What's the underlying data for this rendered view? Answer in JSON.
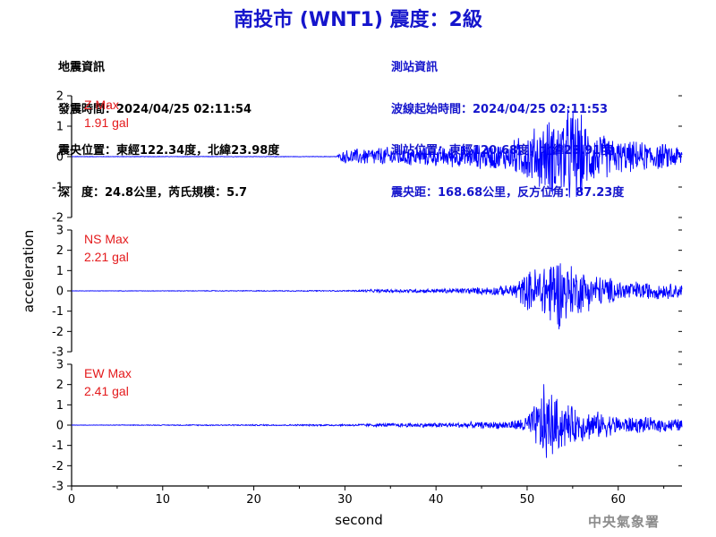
{
  "title": "南投市 (WNT1) 震度：2級",
  "event_info": {
    "heading": "地震資訊",
    "origin_time": "發震時間：2024/04/25 02:11:54",
    "epicenter": "震央位置：東經122.34度，北緯23.98度",
    "depth_magnitude": "深　度：24.8公里，芮氏規模：5.7"
  },
  "station_info": {
    "heading": "測站資訊",
    "wave_start": "波線起始時間：2024/04/25 02:11:53",
    "station_location": "測站位置：東經120.68度，北緯23.91度",
    "distance_azimuth": "震央距：168.68公里，反方位角：87.23度"
  },
  "credit": "中央氣象署",
  "colors": {
    "title": "#1515cc",
    "trace": "#0000ff",
    "max_label": "#e41a1c",
    "credit": "#8c8c8c"
  },
  "chart_data": {
    "type": "line",
    "xlabel": "second",
    "ylabel": "acceleration",
    "xlim": [
      0,
      67
    ],
    "x_ticks": [
      0,
      10,
      20,
      30,
      40,
      50,
      60
    ],
    "grid": false,
    "panels": [
      {
        "name": "Z",
        "max_label": "Z Max",
        "max_value": "1.91 gal",
        "ylim": [
          -2,
          2
        ],
        "y_ticks": [
          -2,
          -1,
          0,
          1,
          2
        ],
        "envelope": [
          [
            0,
            0.01
          ],
          [
            29,
            0.01
          ],
          [
            30,
            0.25
          ],
          [
            33,
            0.35
          ],
          [
            40,
            0.35
          ],
          [
            45,
            0.45
          ],
          [
            48,
            0.5
          ],
          [
            50,
            0.9
          ],
          [
            52,
            1.3
          ],
          [
            54,
            1.6
          ],
          [
            55,
            1.91
          ],
          [
            57,
            1.0
          ],
          [
            60,
            0.6
          ],
          [
            64,
            0.5
          ],
          [
            67,
            0.4
          ]
        ]
      },
      {
        "name": "NS",
        "max_label": "NS Max",
        "max_value": "2.21 gal",
        "ylim": [
          -3,
          3
        ],
        "y_ticks": [
          -3,
          -2,
          -1,
          0,
          1,
          2,
          3
        ],
        "envelope": [
          [
            0,
            0.01
          ],
          [
            30,
            0.03
          ],
          [
            33,
            0.08
          ],
          [
            40,
            0.12
          ],
          [
            45,
            0.2
          ],
          [
            48,
            0.3
          ],
          [
            50,
            1.0
          ],
          [
            52,
            1.7
          ],
          [
            53,
            2.21
          ],
          [
            55,
            1.4
          ],
          [
            57,
            1.0
          ],
          [
            60,
            0.6
          ],
          [
            64,
            0.45
          ],
          [
            67,
            0.4
          ]
        ]
      },
      {
        "name": "EW",
        "max_label": "EW Max",
        "max_value": "2.41 gal",
        "ylim": [
          -3,
          3
        ],
        "y_ticks": [
          -3,
          -2,
          -1,
          0,
          1,
          2,
          3
        ],
        "envelope": [
          [
            0,
            0.01
          ],
          [
            30,
            0.05
          ],
          [
            35,
            0.1
          ],
          [
            42,
            0.15
          ],
          [
            47,
            0.2
          ],
          [
            49,
            0.3
          ],
          [
            50,
            0.6
          ],
          [
            51,
            1.2
          ],
          [
            52,
            2.41
          ],
          [
            53,
            1.6
          ],
          [
            55,
            1.0
          ],
          [
            57,
            0.8
          ],
          [
            60,
            0.5
          ],
          [
            64,
            0.4
          ],
          [
            67,
            0.35
          ]
        ]
      }
    ]
  }
}
